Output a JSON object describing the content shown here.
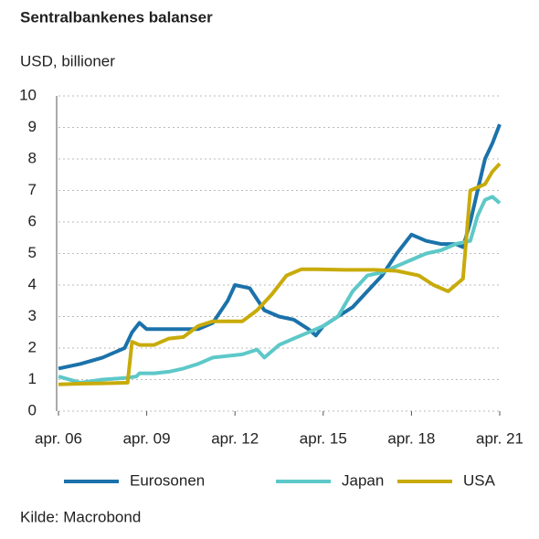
{
  "chart_data": {
    "type": "line",
    "title": "Sentralbankenes balanser",
    "y_label": "USD, billioner",
    "source": "Kilde: Macrobond",
    "xlim": [
      2006.25,
      2021.25
    ],
    "xticks": [
      {
        "value": 2006.25,
        "label": "apr. 06"
      },
      {
        "value": 2009.25,
        "label": "apr. 09"
      },
      {
        "value": 2012.25,
        "label": "apr. 12"
      },
      {
        "value": 2015.25,
        "label": "apr. 15"
      },
      {
        "value": 2018.25,
        "label": "apr. 18"
      },
      {
        "value": 2021.25,
        "label": "apr. 21"
      }
    ],
    "ylim": [
      0,
      10
    ],
    "yticks": [
      0,
      1,
      2,
      3,
      4,
      5,
      6,
      7,
      8,
      9,
      10
    ],
    "grid": true,
    "series": [
      {
        "name": "Eurosonen",
        "color": "#1b72aa",
        "x": [
          2006.25,
          2007,
          2007.75,
          2008.5,
          2008.75,
          2009,
          2009.25,
          2009.75,
          2010.5,
          2011,
          2011.5,
          2012,
          2012.25,
          2012.75,
          2013.25,
          2013.75,
          2014.25,
          2014.75,
          2015,
          2015.25,
          2015.75,
          2016.25,
          2016.75,
          2017.25,
          2017.75,
          2018.25,
          2018.75,
          2019.25,
          2019.75,
          2020,
          2020.25,
          2020.5,
          2020.75,
          2021,
          2021.25
        ],
        "values": [
          1.35,
          1.5,
          1.7,
          2.0,
          2.5,
          2.8,
          2.6,
          2.6,
          2.6,
          2.6,
          2.8,
          3.5,
          4.0,
          3.9,
          3.2,
          3.0,
          2.9,
          2.6,
          2.4,
          2.7,
          3.0,
          3.3,
          3.8,
          4.3,
          5.0,
          5.6,
          5.4,
          5.3,
          5.3,
          5.2,
          6.0,
          7.0,
          8.0,
          8.5,
          9.1
        ]
      },
      {
        "name": "Japan",
        "color": "#5ec8c8",
        "x": [
          2006.25,
          2007,
          2007.75,
          2008.5,
          2008.9,
          2009,
          2009.5,
          2010,
          2010.5,
          2011,
          2011.5,
          2012,
          2012.5,
          2013,
          2013.25,
          2013.75,
          2014.25,
          2014.75,
          2015.25,
          2015.75,
          2016.25,
          2016.75,
          2017.25,
          2017.75,
          2018.25,
          2018.75,
          2019.25,
          2019.75,
          2020.25,
          2020.5,
          2020.75,
          2021,
          2021.25
        ],
        "values": [
          1.1,
          0.9,
          1.0,
          1.05,
          1.1,
          1.2,
          1.2,
          1.25,
          1.35,
          1.5,
          1.7,
          1.75,
          1.8,
          1.95,
          1.7,
          2.1,
          2.3,
          2.5,
          2.7,
          3.0,
          3.8,
          4.3,
          4.4,
          4.6,
          4.8,
          5.0,
          5.1,
          5.3,
          5.4,
          6.2,
          6.7,
          6.8,
          6.6
        ]
      },
      {
        "name": "USA",
        "color": "#c8ab0a",
        "x": [
          2006.25,
          2007,
          2007.75,
          2008.6,
          2008.75,
          2009,
          2009.5,
          2010,
          2010.5,
          2011,
          2011.5,
          2012,
          2012.5,
          2013,
          2013.5,
          2014,
          2014.5,
          2015,
          2016,
          2017,
          2017.75,
          2018.5,
          2019,
          2019.5,
          2019.75,
          2020,
          2020.25,
          2020.5,
          2020.75,
          2021,
          2021.25
        ],
        "values": [
          0.85,
          0.87,
          0.88,
          0.9,
          2.2,
          2.1,
          2.1,
          2.3,
          2.35,
          2.7,
          2.85,
          2.85,
          2.85,
          3.2,
          3.7,
          4.3,
          4.5,
          4.5,
          4.48,
          4.48,
          4.45,
          4.3,
          4.0,
          3.8,
          4.0,
          4.2,
          7.0,
          7.1,
          7.2,
          7.6,
          7.85
        ]
      }
    ]
  }
}
